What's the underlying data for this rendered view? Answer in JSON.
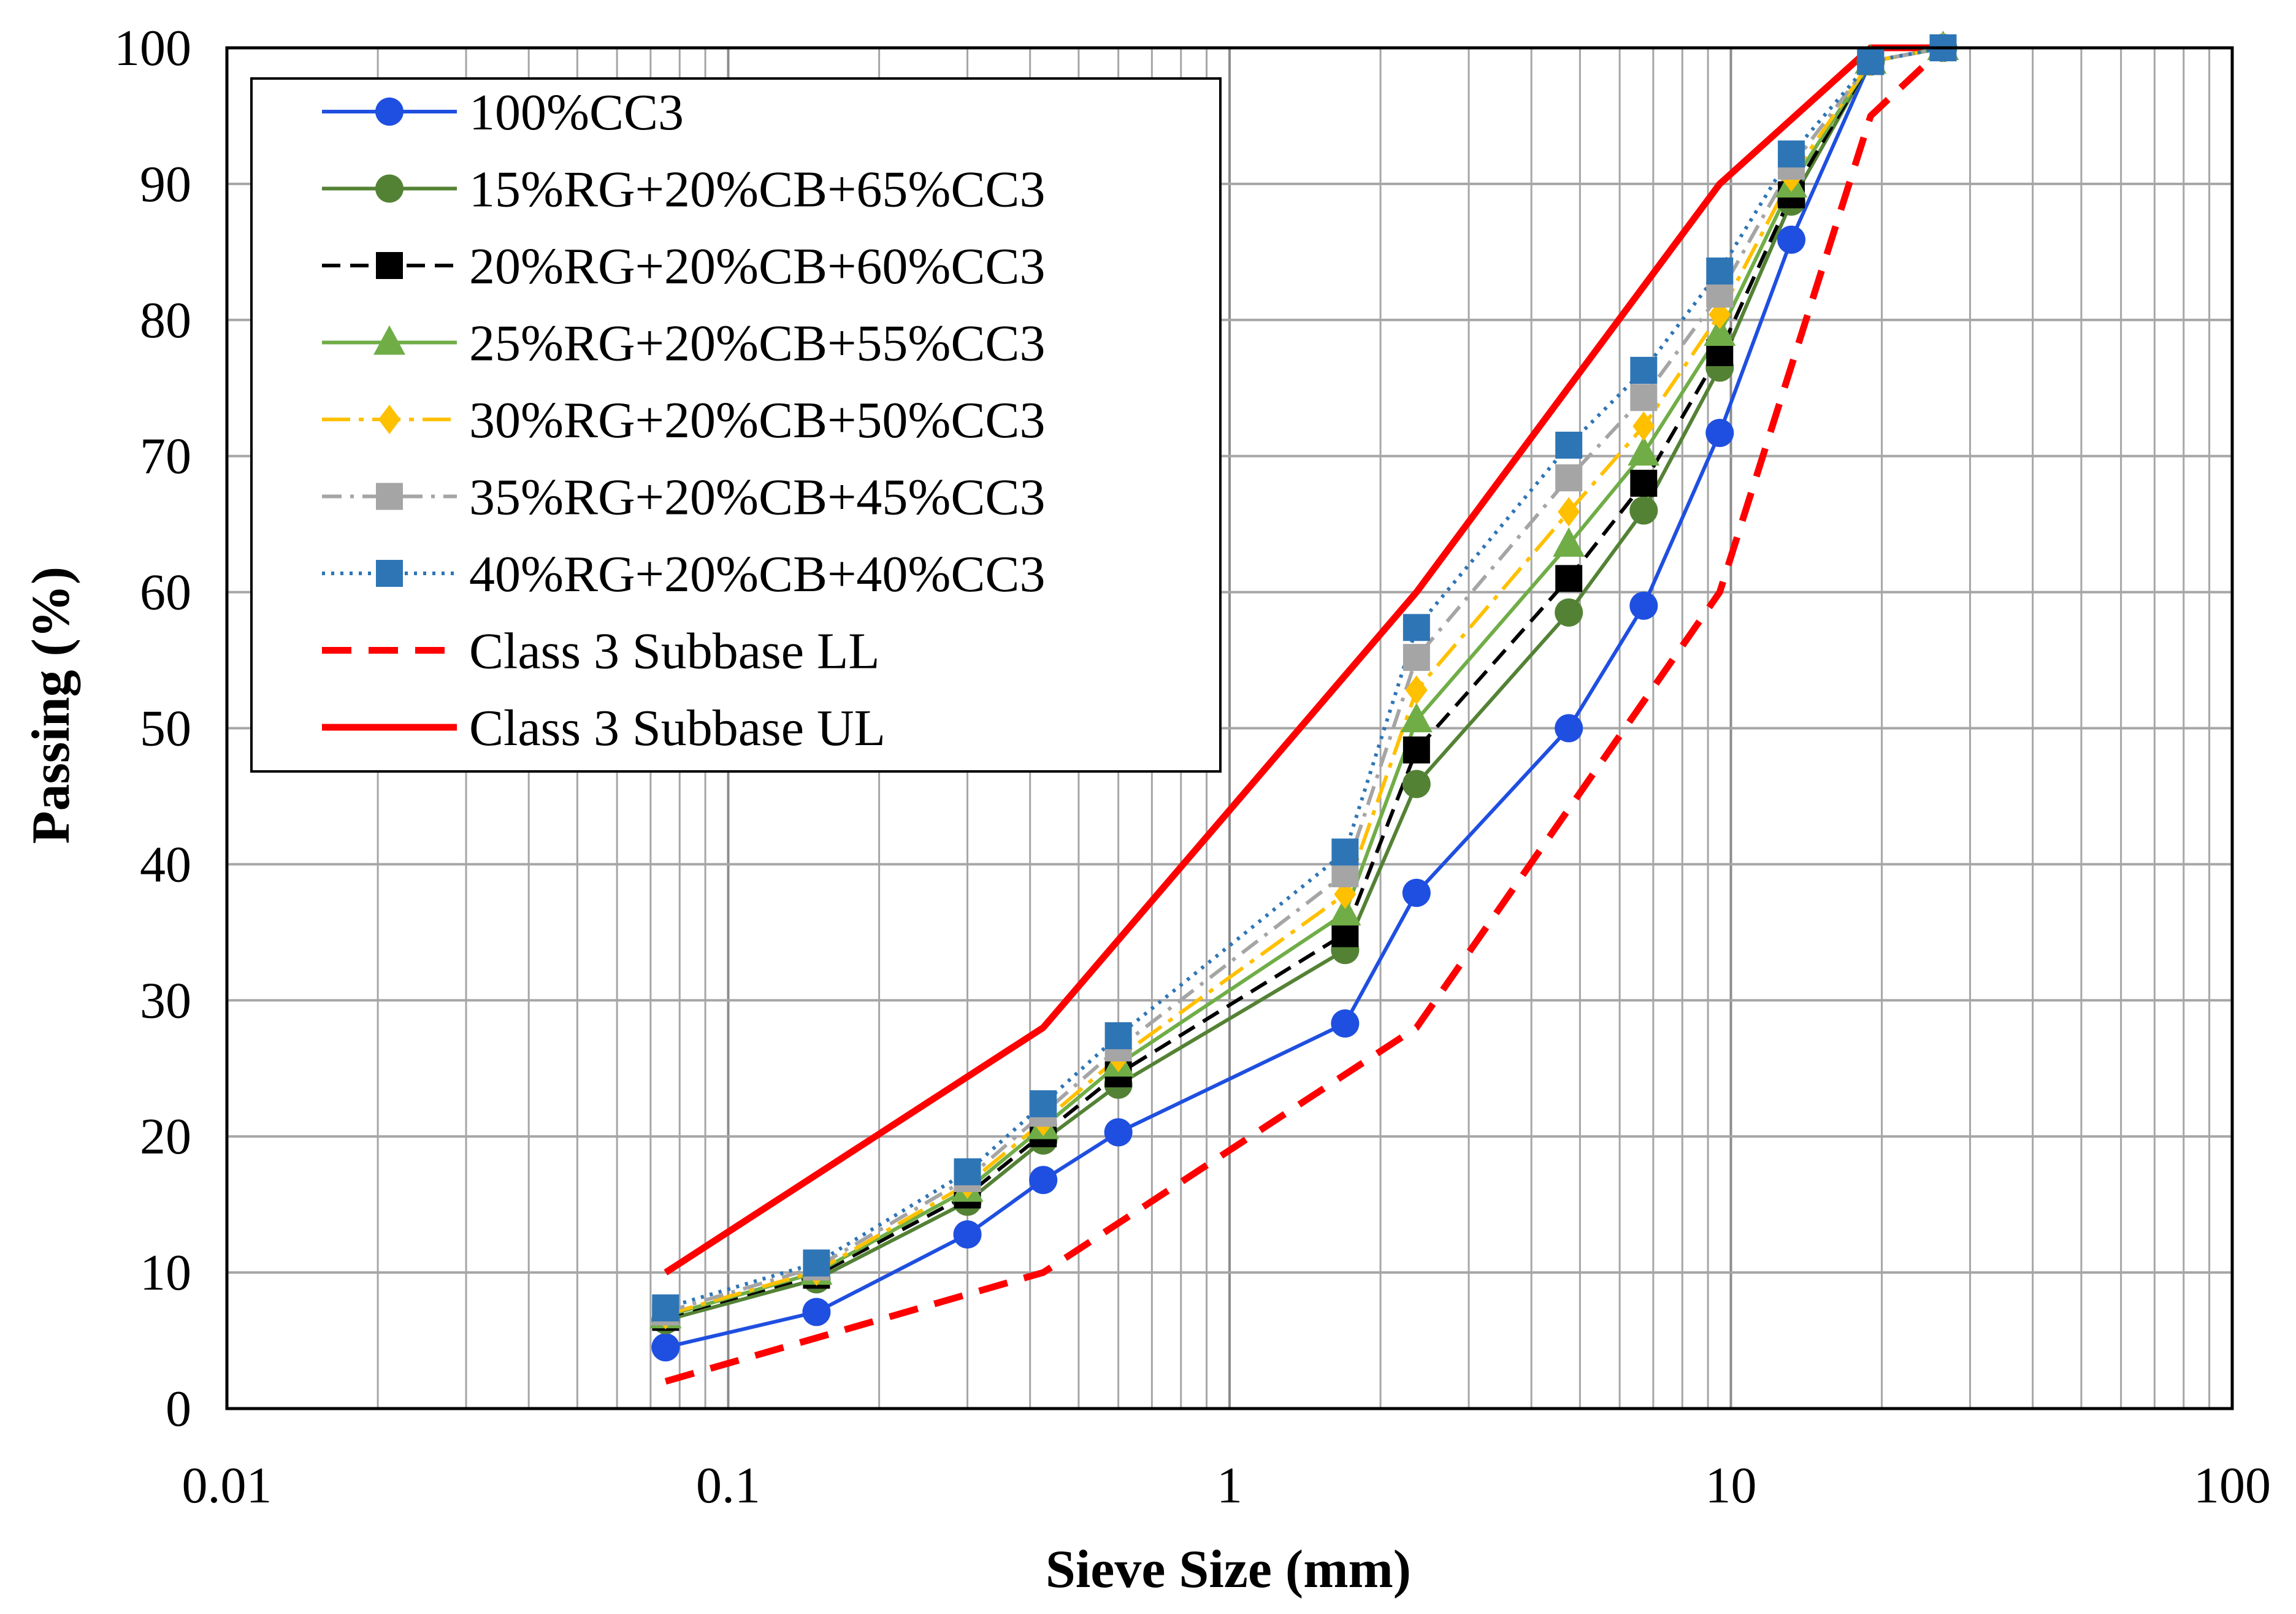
{
  "chart_data": {
    "type": "line",
    "title": "",
    "xlabel": "Sieve Size (mm)",
    "ylabel": "Passing (%)",
    "xscale": "log",
    "xlim": [
      0.01,
      100
    ],
    "ylim": [
      0,
      100
    ],
    "grid": true,
    "legend_position": "top-left",
    "x_ticks": [
      {
        "value": 0.01,
        "label": "0.01"
      },
      {
        "value": 0.1,
        "label": "0.1"
      },
      {
        "value": 1,
        "label": "1"
      },
      {
        "value": 10,
        "label": "10"
      },
      {
        "value": 100,
        "label": "100"
      }
    ],
    "y_ticks": [
      {
        "value": 0,
        "label": "0"
      },
      {
        "value": 10,
        "label": "10"
      },
      {
        "value": 20,
        "label": "20"
      },
      {
        "value": 30,
        "label": "30"
      },
      {
        "value": 40,
        "label": "40"
      },
      {
        "value": 50,
        "label": "50"
      },
      {
        "value": 60,
        "label": "60"
      },
      {
        "value": 70,
        "label": "70"
      },
      {
        "value": 80,
        "label": "80"
      },
      {
        "value": 90,
        "label": "90"
      },
      {
        "value": 100,
        "label": "100"
      }
    ],
    "series": [
      {
        "name": "100%CC3",
        "color": "#1f4fe0",
        "dash": "solid",
        "marker": "circle",
        "x": [
          0.075,
          0.15,
          0.3,
          0.425,
          0.6,
          1.7,
          2.36,
          4.75,
          6.7,
          9.5,
          13.2,
          19,
          26.5
        ],
        "y": [
          4.5,
          7.1,
          12.8,
          16.8,
          20.3,
          28.3,
          37.9,
          50.0,
          59.0,
          71.7,
          85.9,
          99.0,
          100
        ]
      },
      {
        "name": "15%RG+20%CB+65%CC3",
        "color": "#548235",
        "dash": "solid",
        "marker": "circle",
        "x": [
          0.075,
          0.15,
          0.3,
          0.425,
          0.6,
          1.7,
          2.36,
          4.75,
          6.7,
          9.5,
          13.2,
          19,
          26.5
        ],
        "y": [
          6.5,
          9.5,
          15.2,
          19.7,
          23.8,
          33.7,
          45.9,
          58.5,
          66.0,
          76.5,
          88.7,
          99.0,
          100
        ]
      },
      {
        "name": "20%RG+20%CB+60%CC3",
        "color": "#000000",
        "dash": "dashed",
        "marker": "square",
        "x": [
          0.075,
          0.15,
          0.3,
          0.425,
          0.6,
          1.7,
          2.36,
          4.75,
          6.7,
          9.5,
          13.2,
          19,
          26.5
        ],
        "y": [
          6.7,
          9.8,
          15.7,
          20.2,
          24.6,
          34.9,
          48.4,
          61.0,
          68.0,
          77.6,
          89.2,
          99.0,
          100
        ]
      },
      {
        "name": "25%RG+20%CB+55%CC3",
        "color": "#70ad47",
        "dash": "solid",
        "marker": "triangle",
        "x": [
          0.075,
          0.15,
          0.3,
          0.425,
          0.6,
          1.7,
          2.36,
          4.75,
          6.7,
          9.5,
          13.2,
          19,
          26.5
        ],
        "y": [
          6.8,
          10.0,
          16.1,
          20.7,
          25.3,
          36.4,
          50.6,
          63.5,
          70.2,
          79.0,
          89.9,
          99.0,
          100
        ]
      },
      {
        "name": "30%RG+20%CB+50%CC3",
        "color": "#ffc000",
        "dash": "longdash-dot",
        "marker": "diamond",
        "x": [
          0.075,
          0.15,
          0.3,
          0.425,
          0.6,
          1.7,
          2.36,
          4.75,
          6.7,
          9.5,
          13.2,
          19,
          26.5
        ],
        "y": [
          6.9,
          10.1,
          16.5,
          21.1,
          25.8,
          37.8,
          52.8,
          65.9,
          72.2,
          80.4,
          90.5,
          99.0,
          100
        ]
      },
      {
        "name": "35%RG+20%CB+45%CC3",
        "color": "#a5a5a5",
        "dash": "dash-dot",
        "marker": "square",
        "x": [
          0.075,
          0.15,
          0.3,
          0.425,
          0.6,
          1.7,
          2.36,
          4.75,
          6.7,
          9.5,
          13.2,
          19,
          26.5
        ],
        "y": [
          7.1,
          10.4,
          16.9,
          21.7,
          26.5,
          39.3,
          55.2,
          68.4,
          74.3,
          81.9,
          91.3,
          99.0,
          100
        ]
      },
      {
        "name": "40%RG+20%CB+40%CC3",
        "color": "#2e75b6",
        "dash": "dotted",
        "marker": "square",
        "x": [
          0.075,
          0.15,
          0.3,
          0.425,
          0.6,
          1.7,
          2.36,
          4.75,
          6.7,
          9.5,
          13.2,
          19,
          26.5
        ],
        "y": [
          7.4,
          10.7,
          17.4,
          22.4,
          27.4,
          40.9,
          57.4,
          70.8,
          76.3,
          83.6,
          92.2,
          99.0,
          100
        ]
      },
      {
        "name": "Class 3 Subbase LL",
        "color": "#ff0000",
        "dash": "bigdash",
        "marker": "none",
        "x": [
          0.075,
          0.425,
          2.36,
          9.5,
          19,
          26.5
        ],
        "y": [
          2,
          10,
          28,
          60,
          95,
          100
        ]
      },
      {
        "name": "Class 3 Subbase UL",
        "color": "#ff0000",
        "dash": "solid",
        "marker": "none",
        "x": [
          0.075,
          0.425,
          2.36,
          9.5,
          19,
          26.5
        ],
        "y": [
          10,
          28,
          60,
          90,
          100,
          100
        ]
      }
    ]
  }
}
